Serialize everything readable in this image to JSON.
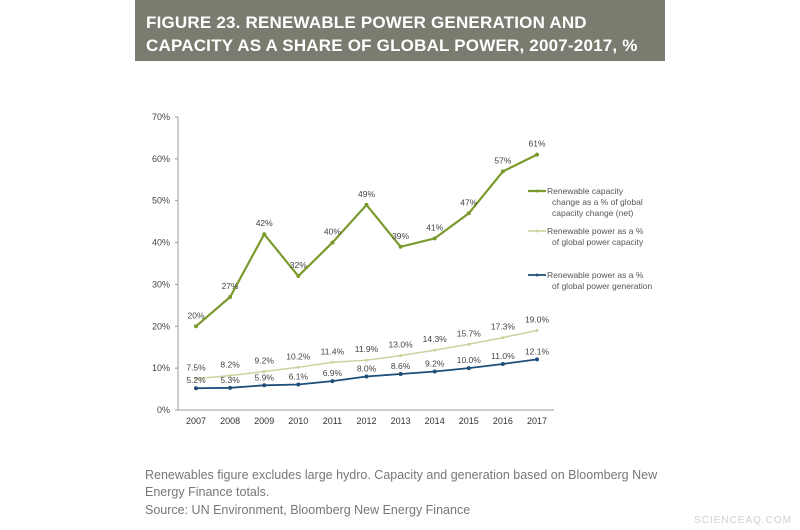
{
  "title": "FIGURE 23. RENEWABLE POWER GENERATION AND CAPACITY AS A SHARE OF GLOBAL POWER, 2007-2017, %",
  "footnote": "Renewables figure excludes large hydro. Capacity and generation based on Bloomberg New Energy Finance totals.",
  "source": "Source: UN Environment, Bloomberg New Energy Finance",
  "watermark": "SCIENCEAQ.COM",
  "chart_data": {
    "type": "line",
    "title": "FIGURE 23. RENEWABLE POWER GENERATION AND CAPACITY AS A SHARE OF GLOBAL POWER, 2007-2017, %",
    "x": [
      "2007",
      "2008",
      "2009",
      "2010",
      "2011",
      "2012",
      "2013",
      "2014",
      "2015",
      "2016",
      "2017"
    ],
    "ylim": [
      0,
      70
    ],
    "yticks": [
      "0%",
      "10%",
      "20%",
      "30%",
      "40%",
      "50%",
      "60%",
      "70%"
    ],
    "grid": false,
    "legend": "right",
    "series": [
      {
        "name": "Renewable capacity change as a % of global capacity change (net)",
        "color": "#7a9a2e",
        "values": [
          20,
          27,
          42,
          32,
          40,
          49,
          39,
          41,
          47,
          57,
          61
        ],
        "labels": [
          "20%",
          "27%",
          "42%",
          "32%",
          "40%",
          "49%",
          "39%",
          "41%",
          "47%",
          "57%",
          "61%"
        ]
      },
      {
        "name": "Renewable power as a % of global power capacity",
        "color": "#c8d49c",
        "values": [
          7.5,
          8.2,
          9.2,
          10.2,
          11.4,
          11.9,
          13.0,
          14.3,
          15.7,
          17.3,
          19.0
        ],
        "labels": [
          "7.5%",
          "8.2%",
          "9.2%",
          "10.2%",
          "11.4%",
          "11.9%",
          "13.0%",
          "14.3%",
          "15.7%",
          "17.3%",
          "19.0%"
        ]
      },
      {
        "name": "Renewable power as a % of global power generation",
        "color": "#1f4e79",
        "values": [
          5.2,
          5.3,
          5.9,
          6.1,
          6.9,
          8.0,
          8.6,
          9.2,
          10.0,
          11.0,
          12.1
        ],
        "labels": [
          "5.2%",
          "5.3%",
          "5.9%",
          "6.1%",
          "6.9%",
          "8.0%",
          "8.6%",
          "9.2%",
          "10.0%",
          "11.0%",
          "12.1%"
        ]
      }
    ]
  }
}
